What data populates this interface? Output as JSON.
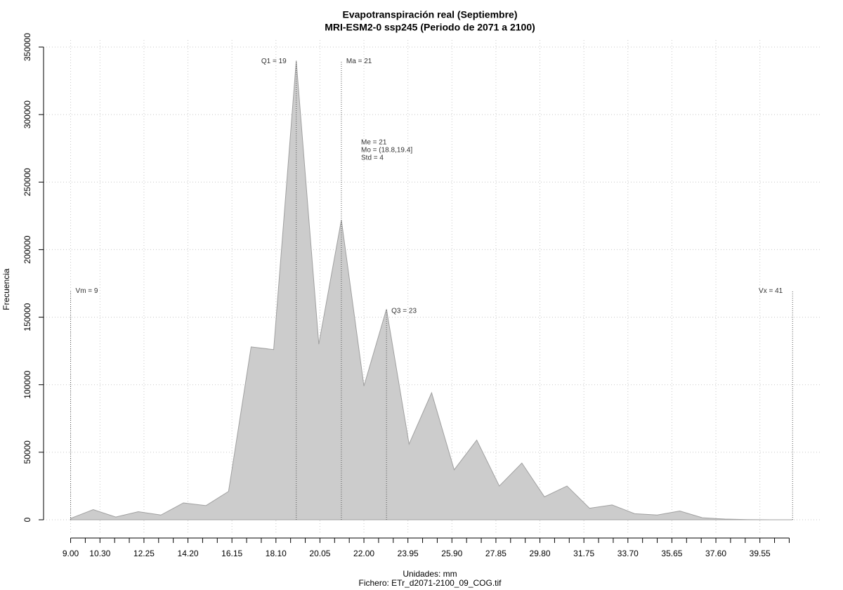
{
  "chart_data": {
    "type": "area",
    "title": "Evapotranspiración real (Septiembre)",
    "subtitle": "MRI-ESM2-0 ssp245 (Periodo de 2071 a 2100)",
    "xlabel": "Unidades: mm",
    "caption": "Fichero: ETr_d2071-2100_09_COG.tif",
    "ylabel": "Frecuencia",
    "x": [
      9,
      10,
      11,
      12,
      13,
      14,
      15,
      16,
      17,
      18,
      19,
      20,
      21,
      22,
      23,
      24,
      25,
      26,
      27,
      28,
      29,
      30,
      31,
      32,
      33,
      34,
      35,
      36,
      37,
      38,
      39,
      40,
      41
    ],
    "values": [
      1000,
      7500,
      2000,
      6000,
      3500,
      12500,
      10500,
      21000,
      128000,
      126000,
      340000,
      130000,
      222000,
      99000,
      156000,
      56000,
      94000,
      37000,
      59000,
      25000,
      42000,
      17000,
      25000,
      8500,
      11000,
      4500,
      3500,
      6500,
      1500,
      500,
      100,
      0,
      0
    ],
    "color": "#cccccc",
    "xlim": [
      7.8,
      42.3
    ],
    "ylim": [
      0,
      350000
    ],
    "xticks": [
      {
        "value": 9,
        "label": "9.00"
      },
      {
        "value": 10.3,
        "label": "10.30"
      },
      {
        "value": 12.25,
        "label": "12.25"
      },
      {
        "value": 14.2,
        "label": "14.20"
      },
      {
        "value": 16.15,
        "label": "16.15"
      },
      {
        "value": 18.1,
        "label": "18.10"
      },
      {
        "value": 20.05,
        "label": "20.05"
      },
      {
        "value": 22,
        "label": "22.00"
      },
      {
        "value": 23.95,
        "label": "23.95"
      },
      {
        "value": 25.9,
        "label": "25.90"
      },
      {
        "value": 27.85,
        "label": "27.85"
      },
      {
        "value": 29.8,
        "label": "29.80"
      },
      {
        "value": 31.75,
        "label": "31.75"
      },
      {
        "value": 33.7,
        "label": "33.70"
      },
      {
        "value": 35.65,
        "label": "35.65"
      },
      {
        "value": 37.6,
        "label": "37.60"
      },
      {
        "value": 39.55,
        "label": "39.55"
      }
    ],
    "xminorticks": [
      9.65,
      10.95,
      11.6,
      12.9,
      13.55,
      14.85,
      15.5,
      16.8,
      17.45,
      18.75,
      19.4,
      20.7,
      21.35,
      22.65,
      23.3,
      24.6,
      25.25,
      26.55,
      27.2,
      28.5,
      29.15,
      30.45,
      31.1,
      32.4,
      33.05,
      34.35,
      35,
      36.3,
      36.95,
      38.25,
      38.9,
      40.2,
      40.85
    ],
    "yticks": [
      0,
      50000,
      100000,
      150000,
      200000,
      250000,
      300000,
      350000
    ],
    "grid": true,
    "markers": [
      {
        "label": "Vm = 9",
        "x": 9,
        "y": 170000,
        "side": "right"
      },
      {
        "label": "Q1 = 19",
        "x": 19,
        "y": 340000,
        "side": "left"
      },
      {
        "label": "Ma = 21",
        "x": 21,
        "y": 340000,
        "side": "right"
      },
      {
        "label": "Q3 = 23",
        "x": 23,
        "y": 155000,
        "side": "right"
      },
      {
        "label": "Vx = 41",
        "x": 41,
        "y": 170000,
        "side": "left"
      }
    ],
    "stats": [
      "Me = 21",
      "Mo = (18.8,19.4]",
      "Std = 4"
    ]
  }
}
